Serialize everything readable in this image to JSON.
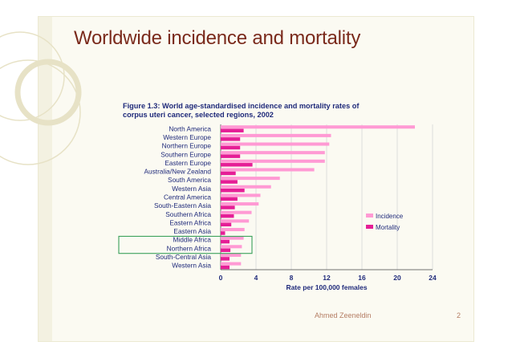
{
  "slide": {
    "title": "Worldwide incidence and mortality",
    "footer_author": "Ahmed Zeeneldin",
    "page_number": "2"
  },
  "colors": {
    "slide_background": "#fbfaf2",
    "title_color": "#7a2a1c",
    "incidence": "#ff9ad4",
    "mortality": "#e51e96",
    "highlight_box": "#3aa05a"
  },
  "chart_data": {
    "type": "bar",
    "orientation": "horizontal",
    "title_line1": "Figure 1.3: World age-standardised incidence and mortality rates of",
    "title_line2": "corpus uteri cancer, selected regions, 2002",
    "xlabel": "Rate per 100,000 females",
    "xlim": [
      0,
      24
    ],
    "xticks": [
      "0",
      "4",
      "8",
      "12",
      "16",
      "20",
      "24"
    ],
    "categories": [
      "North America",
      "Western Europe",
      "Northern Europe",
      "Southern Europe",
      "Eastern Europe",
      "Australia/New Zealand",
      "South America",
      "Western Asia",
      "Central America",
      "South-Eastern Asia",
      "Southern Africa",
      "Eastern Africa",
      "Eastern Asia",
      "Middle Africa",
      "Northern Africa",
      "South-Central Asia",
      "Western Asia"
    ],
    "series": [
      {
        "name": "Incidence",
        "values": [
          22.0,
          12.5,
          12.3,
          11.8,
          11.8,
          10.6,
          6.7,
          5.7,
          4.5,
          4.3,
          3.5,
          3.2,
          2.7,
          2.6,
          2.4,
          2.3,
          2.3
        ]
      },
      {
        "name": "Mortality",
        "values": [
          2.6,
          2.2,
          2.2,
          2.2,
          3.6,
          1.7,
          1.9,
          2.7,
          1.9,
          1.6,
          1.5,
          1.2,
          0.5,
          1.0,
          1.1,
          1.0,
          1.0
        ]
      }
    ],
    "legend_position": "right",
    "highlighted_categories": [
      "Middle Africa",
      "Northern Africa"
    ]
  }
}
